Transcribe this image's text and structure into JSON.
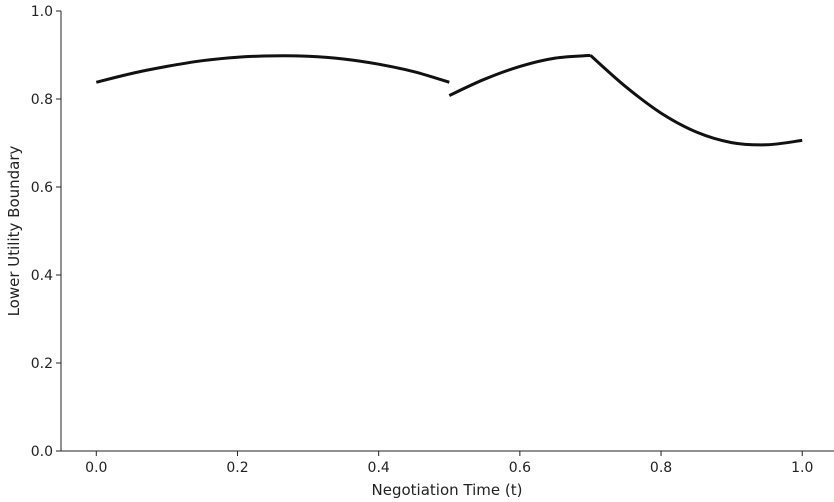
{
  "chart_data": {
    "type": "line",
    "title": "",
    "xlabel": "Negotiation Time (t)",
    "ylabel": "Lower Utility Boundary",
    "xlim": [
      -0.05,
      1.045
    ],
    "ylim": [
      0.0,
      1.0
    ],
    "x_ticks": [
      0.0,
      0.2,
      0.4,
      0.6,
      0.8,
      1.0
    ],
    "x_tick_labels": [
      "0.0",
      "0.2",
      "0.4",
      "0.6",
      "0.8",
      "1.0"
    ],
    "y_ticks": [
      0.0,
      0.2,
      0.4,
      0.6,
      0.8,
      1.0
    ],
    "y_tick_labels": [
      "0.0",
      "0.2",
      "0.4",
      "0.6",
      "0.8",
      "1.0"
    ],
    "grid": false,
    "line_color": "#111111",
    "series": [
      {
        "segment": 1,
        "x": [
          0.0,
          0.05,
          0.1,
          0.15,
          0.2,
          0.25,
          0.3,
          0.35,
          0.4,
          0.45,
          0.5
        ],
        "y": [
          0.838,
          0.858,
          0.874,
          0.887,
          0.895,
          0.898,
          0.897,
          0.891,
          0.879,
          0.862,
          0.838
        ]
      },
      {
        "segment": 2,
        "x": [
          0.5,
          0.55,
          0.6,
          0.65,
          0.7
        ],
        "y": [
          0.808,
          0.845,
          0.874,
          0.893,
          0.899
        ]
      },
      {
        "segment": 3,
        "x": [
          0.7,
          0.75,
          0.8,
          0.85,
          0.9,
          0.95,
          1.0
        ],
        "y": [
          0.899,
          0.828,
          0.768,
          0.725,
          0.701,
          0.696,
          0.706
        ]
      }
    ]
  }
}
